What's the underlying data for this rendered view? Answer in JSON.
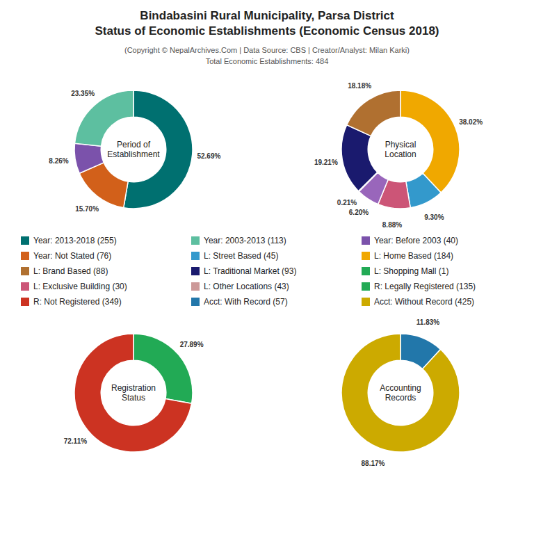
{
  "chart_data": {
    "type": "pie",
    "title": "Bindabasini Rural Municipality, Parsa District\nStatus of Economic Establishments (Economic Census 2018)",
    "subtitle": "(Copyright © NepalArchives.Com | Data Source: CBS | Creator/Analyst: Milan Karki)\nTotal Economic Establishments: 484",
    "data_labels": true,
    "charts": [
      {
        "title": "Period of\nEstablishment",
        "values": [
          52.69,
          15.7,
          8.26,
          23.35
        ],
        "value_labels": [
          "52.69%",
          "15.70%",
          "8.26%",
          "23.35%"
        ],
        "colors": [
          "#007070",
          "#d2601a",
          "#7B52AB",
          "#5dbfa0"
        ]
      },
      {
        "title": "Physical\nLocation",
        "values": [
          38.02,
          9.3,
          8.88,
          6.2,
          0.21,
          19.21,
          18.18
        ],
        "value_labels": [
          "38.02%",
          "9.30%",
          "8.88%",
          "6.20%",
          "0.21%",
          "19.21%",
          "18.18%"
        ],
        "colors": [
          "#f0a800",
          "#3399cc",
          "#cc5577",
          "#9966bb",
          "#228833",
          "#1a1a6e",
          "#b07030"
        ]
      },
      {
        "title": "Registration\nStatus",
        "values": [
          27.89,
          72.11
        ],
        "value_labels": [
          "27.89%",
          "72.11%"
        ],
        "colors": [
          "#22aa55",
          "#cc3322"
        ]
      },
      {
        "title": "Accounting\nRecords",
        "values": [
          11.83,
          88.17
        ],
        "value_labels": [
          "11.83%",
          "88.17%"
        ],
        "colors": [
          "#2277aa",
          "#ccaa00"
        ]
      }
    ],
    "series": [
      {
        "name": "Year: 2013-2018 (255)",
        "color": "#007070"
      },
      {
        "name": "Year: 2003-2013 (113)",
        "color": "#5dbfa0"
      },
      {
        "name": "Year: Before 2003 (40)",
        "color": "#7B52AB"
      },
      {
        "name": "Year: Not Stated (76)",
        "color": "#d2601a"
      },
      {
        "name": "L: Street Based (45)",
        "color": "#3399cc"
      },
      {
        "name": "L: Home Based (184)",
        "color": "#f0a800"
      },
      {
        "name": "L: Brand Based (88)",
        "color": "#b07030"
      },
      {
        "name": "L: Traditional Market (93)",
        "color": "#1a1a6e"
      },
      {
        "name": "L: Shopping Mall (1)",
        "color": "#22aa55"
      },
      {
        "name": "L: Exclusive Building (30)",
        "color": "#cc5577"
      },
      {
        "name": "L: Other Locations (43)",
        "color": "#cc9999"
      },
      {
        "name": "R: Legally Registered (135)",
        "color": "#22aa55"
      },
      {
        "name": "R: Not Registered (349)",
        "color": "#cc3322"
      },
      {
        "name": "Acct: With Record (57)",
        "color": "#2277aa"
      },
      {
        "name": "Acct: Without Record (425)",
        "color": "#ccaa00"
      }
    ]
  }
}
